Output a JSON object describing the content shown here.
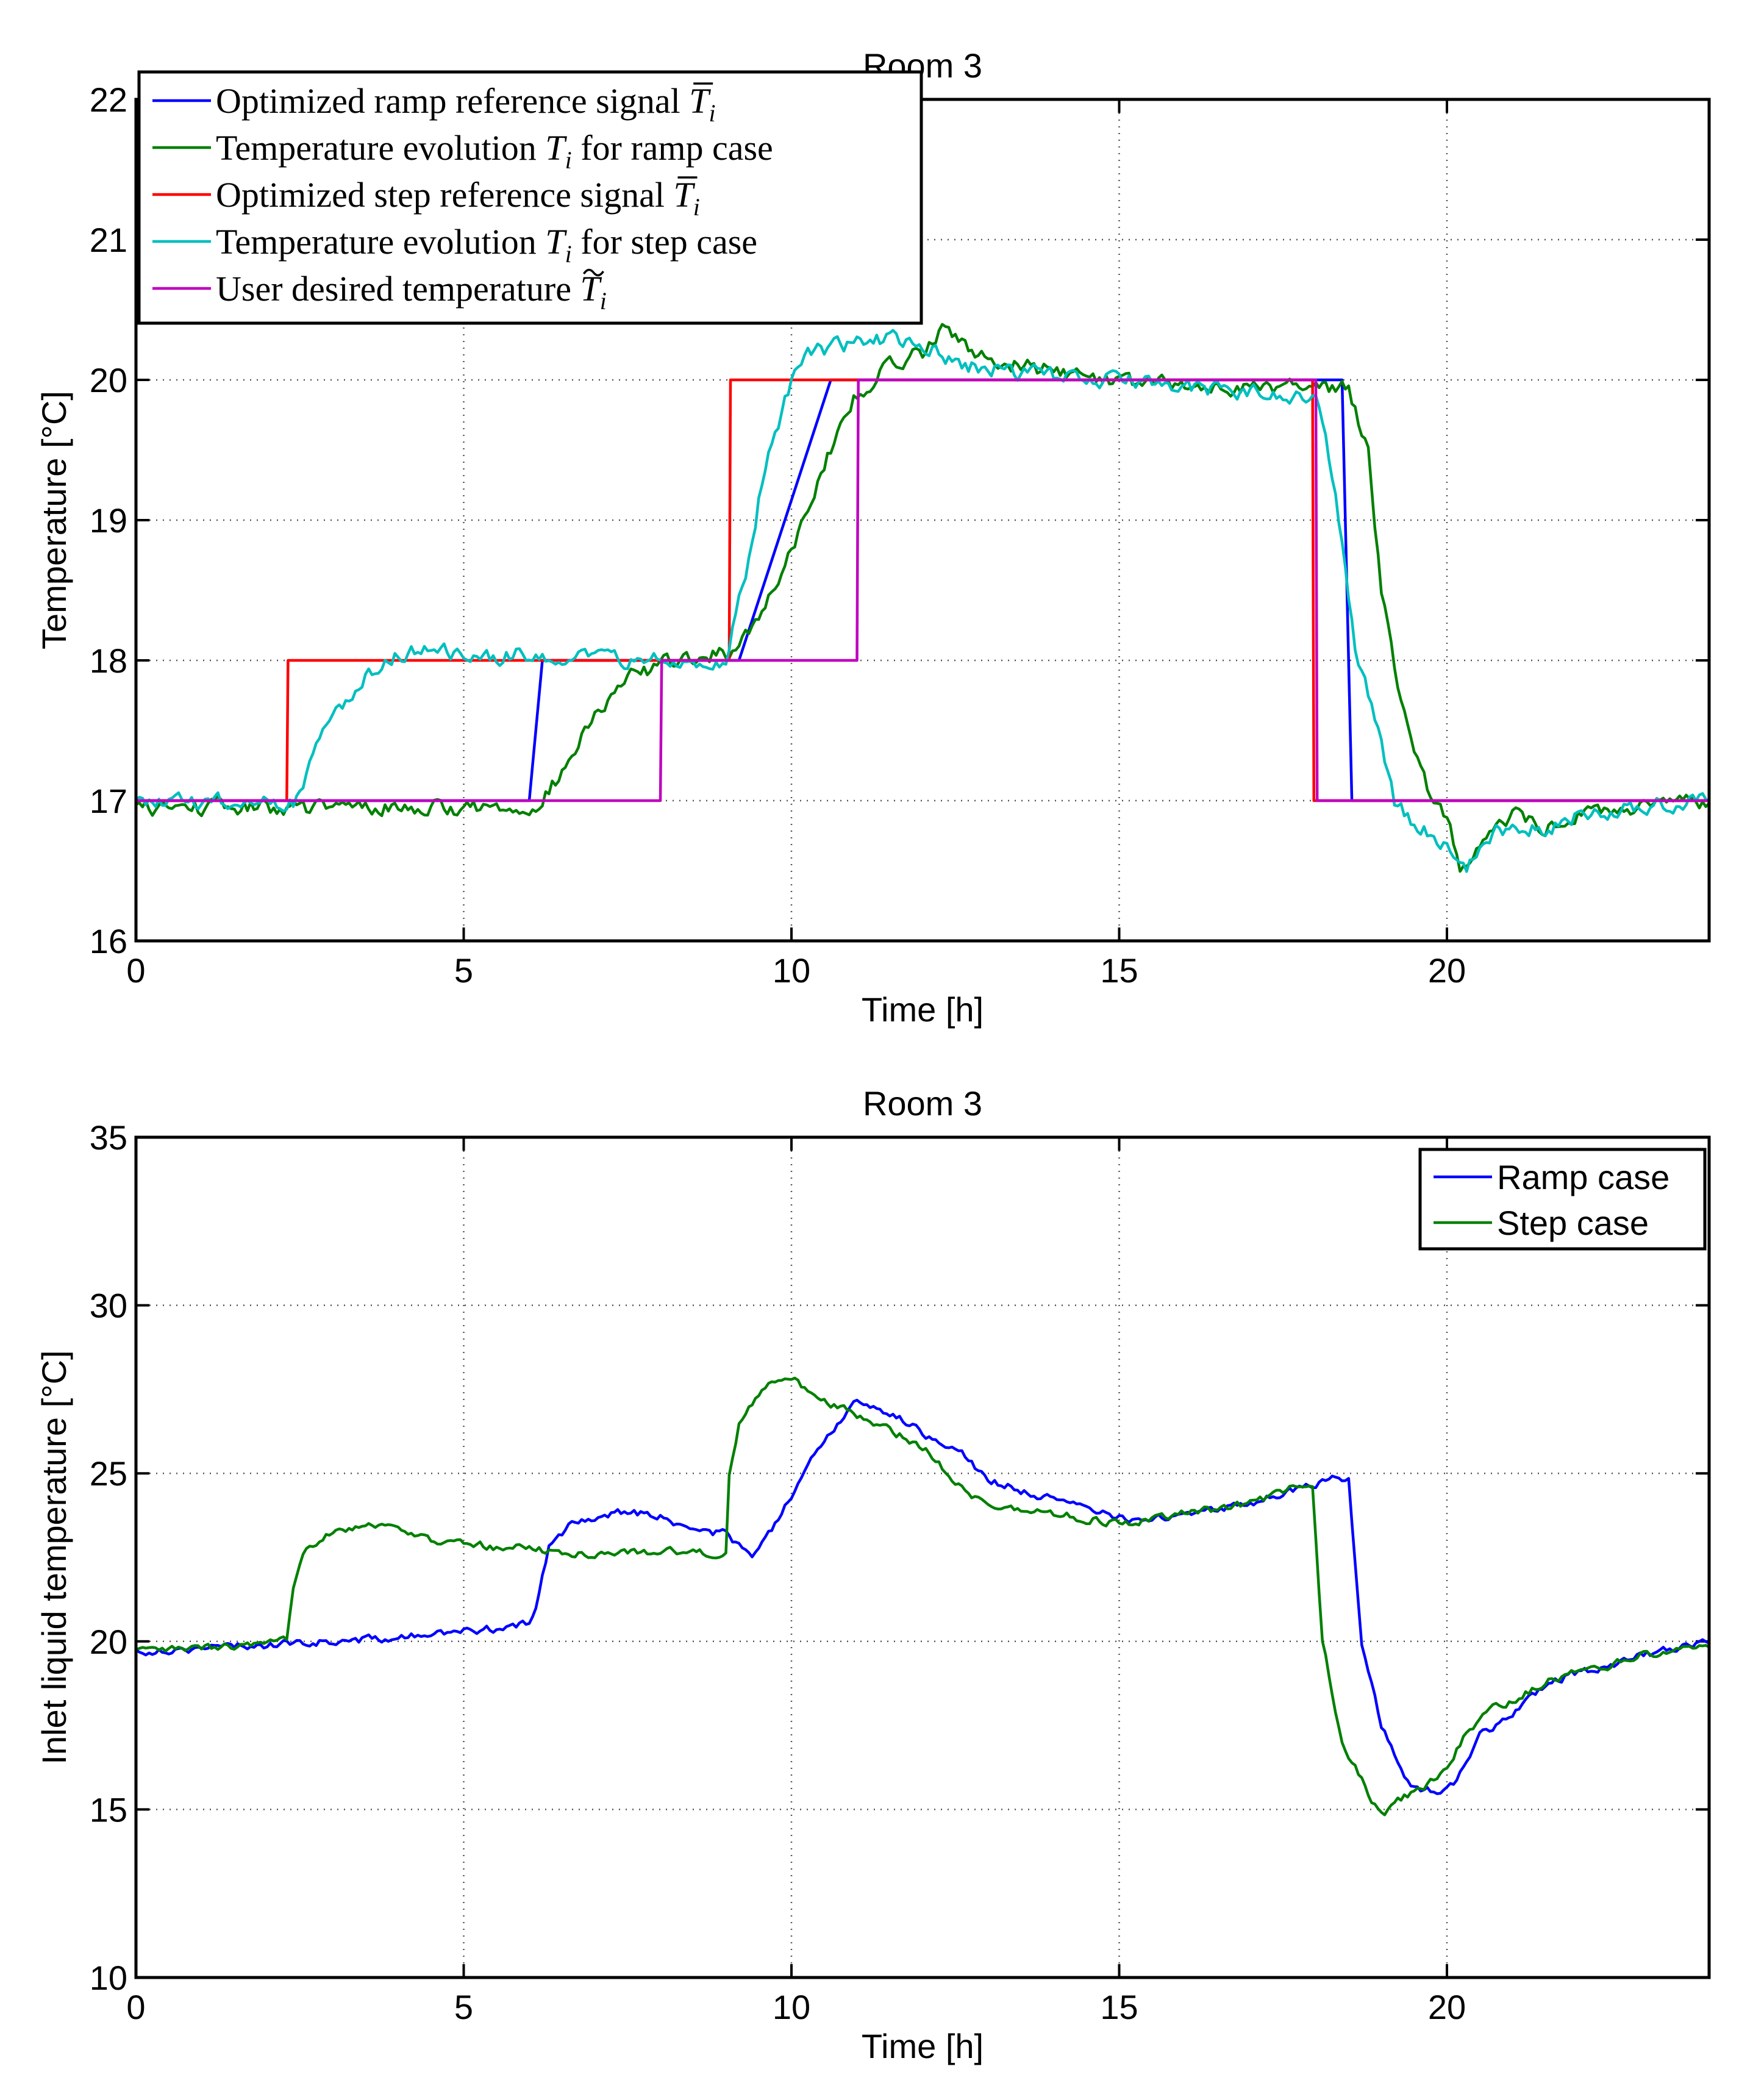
{
  "chart_data": [
    {
      "type": "line",
      "title": "Room 3",
      "xlabel": "Time [h]",
      "ylabel": "Temperature [°C]",
      "xlim": [
        0,
        24
      ],
      "ylim": [
        16,
        22
      ],
      "xticks": [
        "0",
        "5",
        "10",
        "15",
        "20"
      ],
      "yticks": [
        "16",
        "17",
        "18",
        "19",
        "20",
        "21",
        "22"
      ],
      "grid": true,
      "legend_position": "top-left",
      "series": [
        {
          "name": "Optimized ramp reference signal T̄ᵢ",
          "legend": {
            "pre": "Optimized ramp reference signal ",
            "sym": "T",
            "accent": "bar",
            "sub": "i",
            "post": ""
          },
          "color": "#0000ff",
          "noise": 0,
          "points": [
            [
              0,
              17
            ],
            [
              6,
              17
            ],
            [
              6.2,
              18
            ],
            [
              9.2,
              18
            ],
            [
              10.6,
              20
            ],
            [
              18.4,
              20
            ],
            [
              18.55,
              17
            ],
            [
              24,
              17
            ]
          ]
        },
        {
          "name": "Temperature evolution Tᵢ for ramp case",
          "legend": {
            "pre": "Temperature evolution ",
            "sym": "T",
            "accent": "",
            "sub": "i",
            "post": " for ramp case"
          },
          "color": "#008000",
          "noise": 0.05,
          "points": [
            [
              0,
              16.95
            ],
            [
              5.9,
              16.95
            ],
            [
              6.2,
              17.0
            ],
            [
              6.5,
              17.2
            ],
            [
              7.0,
              17.6
            ],
            [
              7.6,
              17.9
            ],
            [
              8.2,
              18.0
            ],
            [
              9.0,
              18.05
            ],
            [
              9.5,
              18.3
            ],
            [
              10.0,
              18.8
            ],
            [
              10.5,
              19.4
            ],
            [
              11.0,
              19.9
            ],
            [
              11.5,
              20.1
            ],
            [
              12.0,
              20.2
            ],
            [
              12.3,
              20.4
            ],
            [
              12.7,
              20.2
            ],
            [
              13.5,
              20.1
            ],
            [
              15.0,
              20.0
            ],
            [
              16.0,
              19.95
            ],
            [
              17.0,
              19.95
            ],
            [
              18.0,
              19.95
            ],
            [
              18.5,
              19.95
            ],
            [
              18.8,
              19.5
            ],
            [
              19.0,
              18.5
            ],
            [
              19.3,
              17.7
            ],
            [
              19.7,
              17.1
            ],
            [
              20.0,
              16.9
            ],
            [
              20.2,
              16.5
            ],
            [
              20.5,
              16.7
            ],
            [
              21.0,
              16.9
            ],
            [
              21.5,
              16.8
            ],
            [
              22.0,
              16.9
            ],
            [
              23.0,
              16.95
            ],
            [
              24,
              17.0
            ]
          ]
        },
        {
          "name": "Optimized step reference signal T̄ᵢ",
          "legend": {
            "pre": "Optimized step reference signal ",
            "sym": "T",
            "accent": "bar",
            "sub": "i",
            "post": ""
          },
          "color": "#ff0000",
          "noise": 0,
          "points": [
            [
              0,
              17
            ],
            [
              2.3,
              17
            ],
            [
              2.32,
              18
            ],
            [
              9.05,
              18
            ],
            [
              9.07,
              20
            ],
            [
              17.95,
              20
            ],
            [
              17.97,
              17
            ],
            [
              24,
              17
            ]
          ]
        },
        {
          "name": "Temperature evolution Tᵢ for step case",
          "legend": {
            "pre": "Temperature evolution ",
            "sym": "T",
            "accent": "",
            "sub": "i",
            "post": " for step case"
          },
          "color": "#00bfbf",
          "noise": 0.05,
          "points": [
            [
              0,
              16.98
            ],
            [
              2.4,
              17.0
            ],
            [
              2.7,
              17.3
            ],
            [
              3.0,
              17.6
            ],
            [
              3.5,
              17.9
            ],
            [
              4.0,
              18.05
            ],
            [
              4.5,
              18.1
            ],
            [
              5.0,
              18.0
            ],
            [
              6.0,
              18.05
            ],
            [
              7.0,
              18.0
            ],
            [
              8.0,
              18.0
            ],
            [
              9.0,
              18.0
            ],
            [
              9.3,
              18.6
            ],
            [
              9.6,
              19.4
            ],
            [
              10.0,
              20.0
            ],
            [
              10.3,
              20.2
            ],
            [
              10.8,
              20.25
            ],
            [
              11.5,
              20.3
            ],
            [
              12.0,
              20.25
            ],
            [
              12.7,
              20.1
            ],
            [
              13.5,
              20.05
            ],
            [
              15.0,
              20.0
            ],
            [
              16.0,
              19.95
            ],
            [
              17.5,
              19.9
            ],
            [
              18.0,
              19.9
            ],
            [
              18.3,
              19.2
            ],
            [
              18.6,
              18.1
            ],
            [
              18.9,
              17.6
            ],
            [
              19.2,
              17.0
            ],
            [
              19.6,
              16.8
            ],
            [
              20.0,
              16.7
            ],
            [
              20.3,
              16.5
            ],
            [
              20.8,
              16.8
            ],
            [
              21.5,
              16.8
            ],
            [
              22.0,
              16.9
            ],
            [
              23.0,
              16.95
            ],
            [
              24,
              17.0
            ]
          ]
        },
        {
          "name": "User desired temperature T̃ᵢ",
          "legend": {
            "pre": "User desired temperature ",
            "sym": "T",
            "accent": "tilde",
            "sub": "i",
            "post": ""
          },
          "color": "#bf00bf",
          "noise": 0,
          "points": [
            [
              0,
              17
            ],
            [
              8,
              17
            ],
            [
              8.02,
              18
            ],
            [
              11,
              18
            ],
            [
              11.02,
              20
            ],
            [
              18,
              20
            ],
            [
              18.02,
              17
            ],
            [
              24,
              17
            ]
          ]
        }
      ]
    },
    {
      "type": "line",
      "title": "Room 3",
      "xlabel": "Time [h]",
      "ylabel": "Inlet liquid temperature [°C]",
      "xlim": [
        0,
        24
      ],
      "ylim": [
        10,
        35
      ],
      "xticks": [
        "0",
        "5",
        "10",
        "15",
        "20"
      ],
      "yticks": [
        "10",
        "15",
        "20",
        "25",
        "30",
        "35"
      ],
      "grid": true,
      "legend_position": "top-right",
      "series": [
        {
          "name": "Ramp case",
          "color": "#0000ff",
          "noise": 0.1,
          "points": [
            [
              0,
              19.7
            ],
            [
              1,
              19.8
            ],
            [
              2,
              19.9
            ],
            [
              3,
              20.0
            ],
            [
              4,
              20.1
            ],
            [
              5,
              20.3
            ],
            [
              5.5,
              20.4
            ],
            [
              6,
              20.5
            ],
            [
              6.1,
              21.0
            ],
            [
              6.3,
              22.8
            ],
            [
              6.7,
              23.6
            ],
            [
              7.5,
              23.9
            ],
            [
              8.0,
              23.7
            ],
            [
              8.5,
              23.3
            ],
            [
              9.0,
              23.2
            ],
            [
              9.4,
              22.5
            ],
            [
              9.7,
              23.3
            ],
            [
              10.0,
              24.3
            ],
            [
              10.5,
              26.0
            ],
            [
              11.0,
              27.2
            ],
            [
              11.5,
              26.8
            ],
            [
              12.0,
              26.2
            ],
            [
              12.5,
              25.8
            ],
            [
              13.0,
              24.8
            ],
            [
              14.0,
              24.2
            ],
            [
              15.0,
              23.7
            ],
            [
              15.5,
              23.6
            ],
            [
              16.0,
              23.8
            ],
            [
              17.0,
              24.1
            ],
            [
              18.0,
              24.7
            ],
            [
              18.35,
              24.9
            ],
            [
              18.5,
              24.8
            ],
            [
              18.7,
              20.0
            ],
            [
              19.0,
              17.5
            ],
            [
              19.4,
              15.8
            ],
            [
              19.8,
              15.5
            ],
            [
              20.1,
              15.8
            ],
            [
              20.5,
              17.2
            ],
            [
              21.0,
              17.8
            ],
            [
              21.5,
              18.7
            ],
            [
              22.0,
              19.1
            ],
            [
              22.5,
              19.3
            ],
            [
              23.0,
              19.6
            ],
            [
              23.5,
              19.8
            ],
            [
              24.0,
              20.0
            ]
          ]
        },
        {
          "name": "Step case",
          "color": "#008000",
          "noise": 0.1,
          "points": [
            [
              0,
              19.7
            ],
            [
              1,
              19.8
            ],
            [
              2,
              19.9
            ],
            [
              2.3,
              20.0
            ],
            [
              2.4,
              21.5
            ],
            [
              2.6,
              22.8
            ],
            [
              3.0,
              23.3
            ],
            [
              3.5,
              23.5
            ],
            [
              4.0,
              23.4
            ],
            [
              4.5,
              23.0
            ],
            [
              5.0,
              22.9
            ],
            [
              5.5,
              22.8
            ],
            [
              6.0,
              22.8
            ],
            [
              6.5,
              22.6
            ],
            [
              7.0,
              22.6
            ],
            [
              8.0,
              22.7
            ],
            [
              9.0,
              22.6
            ],
            [
              9.05,
              25.0
            ],
            [
              9.2,
              26.5
            ],
            [
              9.6,
              27.6
            ],
            [
              10.0,
              27.8
            ],
            [
              10.5,
              27.2
            ],
            [
              11.0,
              26.7
            ],
            [
              11.5,
              26.3
            ],
            [
              12.0,
              25.8
            ],
            [
              12.5,
              24.8
            ],
            [
              13.0,
              24.0
            ],
            [
              14.0,
              23.8
            ],
            [
              15.0,
              23.5
            ],
            [
              15.5,
              23.6
            ],
            [
              16.0,
              23.8
            ],
            [
              17.0,
              24.1
            ],
            [
              17.85,
              24.7
            ],
            [
              17.95,
              24.6
            ],
            [
              18.1,
              20.0
            ],
            [
              18.4,
              17.0
            ],
            [
              18.8,
              15.5
            ],
            [
              19.0,
              14.8
            ],
            [
              19.3,
              15.3
            ],
            [
              19.7,
              15.7
            ],
            [
              20.0,
              16.2
            ],
            [
              20.3,
              17.3
            ],
            [
              20.7,
              18.0
            ],
            [
              21.0,
              18.2
            ],
            [
              21.5,
              18.8
            ],
            [
              22.0,
              19.1
            ],
            [
              22.5,
              19.3
            ],
            [
              23.0,
              19.6
            ],
            [
              23.5,
              19.8
            ],
            [
              24.0,
              19.9
            ]
          ]
        }
      ]
    }
  ]
}
